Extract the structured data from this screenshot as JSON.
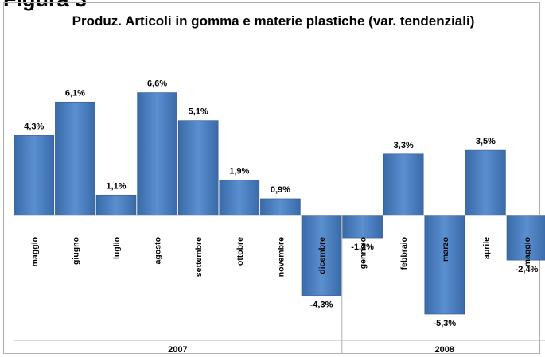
{
  "figure_label": "Figura 3",
  "chart_data": {
    "type": "bar",
    "title": "Produz. Articoli in gomma e materie plastiche (var. tendenziali)",
    "categories": [
      "maggio",
      "giugno",
      "luglio",
      "agosto",
      "settembre",
      "ottobre",
      "novembre",
      "dicembre",
      "gennaio",
      "febbraio",
      "marzo",
      "aprile",
      "maggio"
    ],
    "values": [
      4.3,
      6.1,
      1.1,
      6.6,
      5.1,
      1.9,
      0.9,
      -4.3,
      -1.2,
      3.3,
      -5.3,
      3.5,
      -2.4
    ],
    "value_labels": [
      "4,3%",
      "6,1%",
      "1,1%",
      "6,6%",
      "5,1%",
      "1,9%",
      "0,9%",
      "-4,3%",
      "-1,2%",
      "3,3%",
      "-5,3%",
      "3,5%",
      "-2,4%"
    ],
    "groups": [
      {
        "label": "2007",
        "count": 8
      },
      {
        "label": "2008",
        "count": 5
      }
    ],
    "bar_color": "#4a7ebb",
    "legend": "none",
    "grid": false
  }
}
